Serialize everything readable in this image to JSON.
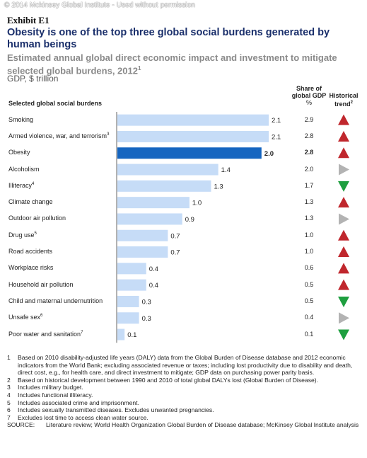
{
  "watermark": "© 2014 Mckinsey Global Institute - Used without permission",
  "exhibit": "Exhibit E1",
  "title": "Obesity is one of the top three global social burdens generated by human beings",
  "subtitle": "Estimated annual global direct economic impact and investment to mitigate selected global burdens, 2012",
  "subtitle_note": "1",
  "units": "GDP, $ trillion",
  "columns": {
    "burdens": "Selected global social burdens",
    "share_line1": "Share of",
    "share_line2": "global GDP",
    "share_unit": "%",
    "trend_line1": "Historical",
    "trend_line2": "trend",
    "trend_note": "2"
  },
  "colors": {
    "bar": "#c6dcf7",
    "bar_highlight": "#1565c0",
    "up": "#c0272d",
    "down": "#1e9f3f",
    "flat": "#b3b3b3",
    "axis": "#666666"
  },
  "chart_data": {
    "type": "bar",
    "orientation": "horizontal",
    "categories": [
      "Smoking",
      "Armed violence, war, and terrorism",
      "Obesity",
      "Alcoholism",
      "Illiteracy",
      "Climate change",
      "Outdoor air pollution",
      "Drug use",
      "Road accidents",
      "Workplace risks",
      "Household air pollution",
      "Child and maternal undernutrition",
      "Unsafe sex",
      "Poor water and sanitation"
    ],
    "category_notes": [
      "",
      "3",
      "",
      "",
      "4",
      "",
      "",
      "5",
      "",
      "",
      "",
      "",
      "6",
      "7"
    ],
    "values": [
      2.1,
      2.1,
      2.0,
      1.4,
      1.3,
      1.0,
      0.9,
      0.7,
      0.7,
      0.4,
      0.4,
      0.3,
      0.3,
      0.1
    ],
    "value_labels": [
      "2.1",
      "2.1",
      "2.0",
      "1.4",
      "1.3",
      "1.0",
      "0.9",
      "0.7",
      "0.7",
      "0.4",
      "0.4",
      "0.3",
      "0.3",
      "0.1"
    ],
    "share_of_gdp": [
      "2.9",
      "2.8",
      "2.8",
      "2.0",
      "1.7",
      "1.3",
      "1.3",
      "1.0",
      "1.0",
      "0.6",
      "0.5",
      "0.5",
      "0.4",
      "0.1"
    ],
    "trend": [
      "up",
      "up",
      "up",
      "flat",
      "down",
      "up",
      "flat",
      "up",
      "up",
      "up",
      "up",
      "down",
      "flat",
      "down"
    ],
    "highlight_index": 2,
    "xlim": [
      0,
      2.1
    ]
  },
  "footnotes": [
    {
      "n": "1",
      "text": "Based on 2010 disability-adjusted life years (DALY) data from the Global Burden of Disease database and 2012 economic indicators from the World Bank; excluding associated revenue or taxes; including lost productivity due to disability and death, direct cost, e.g., for health care, and direct investment to mitigate; GDP data on purchasing power parity basis."
    },
    {
      "n": "2",
      "text": "Based on historical development between 1990 and 2010 of total global DALYs lost (Global Burden of Disease)."
    },
    {
      "n": "3",
      "text": "Includes military budget."
    },
    {
      "n": "4",
      "text": "Includes functional illiteracy."
    },
    {
      "n": "5",
      "text": "Includes associated crime and imprisonment."
    },
    {
      "n": "6",
      "text": "Includes sexually transmitted diseases. Excludes unwanted pregnancies."
    },
    {
      "n": "7",
      "text": "Excludes lost time to access clean water source."
    }
  ],
  "source": {
    "label": "SOURCE:",
    "text": "Literature review; World Health Organization Global Burden of Disease database; McKinsey Global Institute analysis"
  }
}
